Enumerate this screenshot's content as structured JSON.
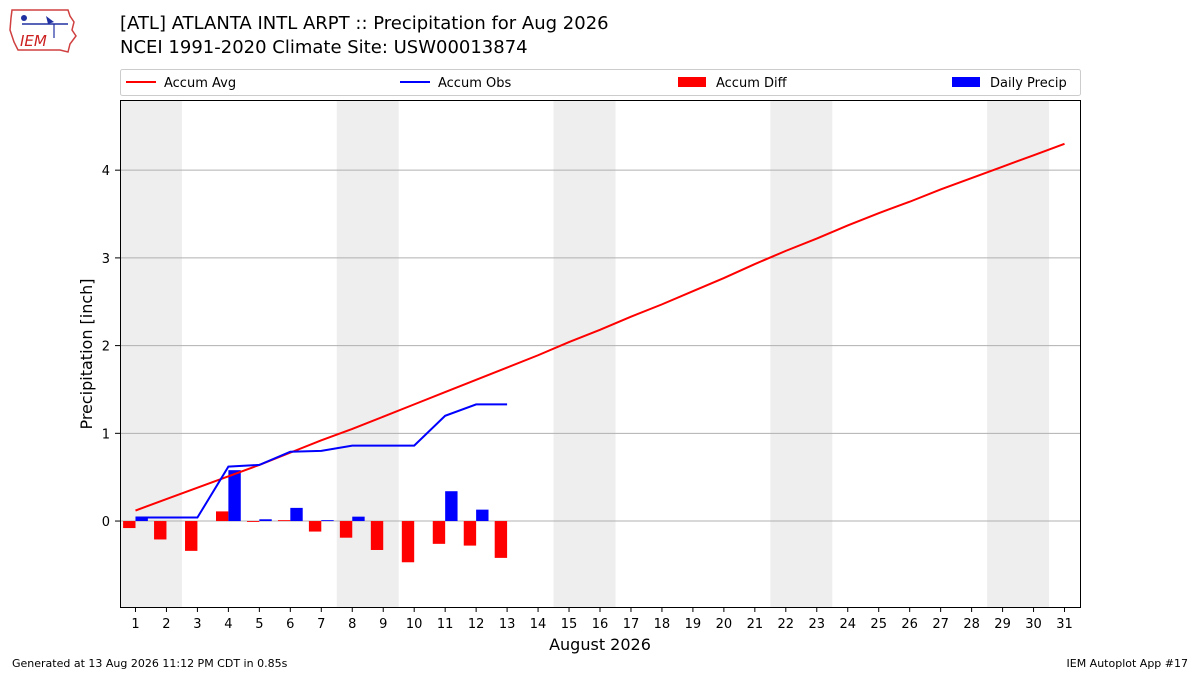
{
  "header": {
    "logo_text": "IEM",
    "title_line1": "[ATL] ATLANTA INTL ARPT :: Precipitation for Aug 2026",
    "title_line2": "NCEI 1991-2020 Climate Site: USW00013874"
  },
  "footer": {
    "left": "Generated at 13 Aug 2026 11:12 PM CDT in 0.85s",
    "right": "IEM Autoplot App #17"
  },
  "colors": {
    "accum_avg": "#ff0000",
    "accum_obs": "#0000ff",
    "accum_diff": "#ff0000",
    "daily_precip": "#0000ff",
    "weekend_shade": "#eeeeee",
    "grid": "#b0b0b0"
  },
  "chart_data": {
    "type": "bar",
    "xlabel": "August 2026",
    "ylabel": "Precipitation [inch]",
    "x": [
      1,
      2,
      3,
      4,
      5,
      6,
      7,
      8,
      9,
      10,
      11,
      12,
      13,
      14,
      15,
      16,
      17,
      18,
      19,
      20,
      21,
      22,
      23,
      24,
      25,
      26,
      27,
      28,
      29,
      30,
      31
    ],
    "xlim": [
      0.5,
      31.5
    ],
    "ylim": [
      -0.98,
      4.8
    ],
    "yticks": [
      0,
      1,
      2,
      3,
      4
    ],
    "grid": "horizontal",
    "legend_position": "top",
    "shaded_days": [
      [
        1,
        2
      ],
      [
        8,
        9
      ],
      [
        15,
        16
      ],
      [
        22,
        23
      ],
      [
        29,
        30
      ]
    ],
    "series": [
      {
        "name": "Accum Avg",
        "kind": "line",
        "x": [
          1,
          2,
          3,
          4,
          5,
          6,
          7,
          8,
          9,
          10,
          11,
          12,
          13,
          14,
          15,
          16,
          17,
          18,
          19,
          20,
          21,
          22,
          23,
          24,
          25,
          26,
          27,
          28,
          29,
          30,
          31
        ],
        "values": [
          0.12,
          0.25,
          0.38,
          0.51,
          0.64,
          0.78,
          0.92,
          1.05,
          1.19,
          1.33,
          1.47,
          1.61,
          1.75,
          1.89,
          2.04,
          2.18,
          2.33,
          2.47,
          2.62,
          2.77,
          2.93,
          3.08,
          3.22,
          3.37,
          3.51,
          3.64,
          3.78,
          3.91,
          4.04,
          4.17,
          4.3
        ]
      },
      {
        "name": "Accum Obs",
        "kind": "line",
        "x": [
          1,
          2,
          3,
          4,
          5,
          6,
          7,
          8,
          9,
          10,
          11,
          12,
          13
        ],
        "values": [
          0.04,
          0.04,
          0.04,
          0.62,
          0.64,
          0.79,
          0.8,
          0.86,
          0.86,
          0.86,
          1.2,
          1.33,
          1.33
        ]
      },
      {
        "name": "Accum Diff",
        "kind": "bar",
        "x": [
          1,
          2,
          3,
          4,
          5,
          6,
          7,
          8,
          9,
          10,
          11,
          12,
          13
        ],
        "values": [
          -0.08,
          -0.21,
          -0.34,
          0.11,
          -0.01,
          0.01,
          -0.12,
          -0.19,
          -0.33,
          -0.47,
          -0.26,
          -0.28,
          -0.42
        ]
      },
      {
        "name": "Daily Precip",
        "kind": "bar",
        "x": [
          1,
          2,
          3,
          4,
          5,
          6,
          7,
          8,
          9,
          10,
          11,
          12,
          13
        ],
        "values": [
          0.04,
          0.0,
          0.0,
          0.58,
          0.02,
          0.15,
          0.01,
          0.05,
          0.0,
          0.0,
          0.34,
          0.13,
          0.0
        ]
      }
    ]
  }
}
